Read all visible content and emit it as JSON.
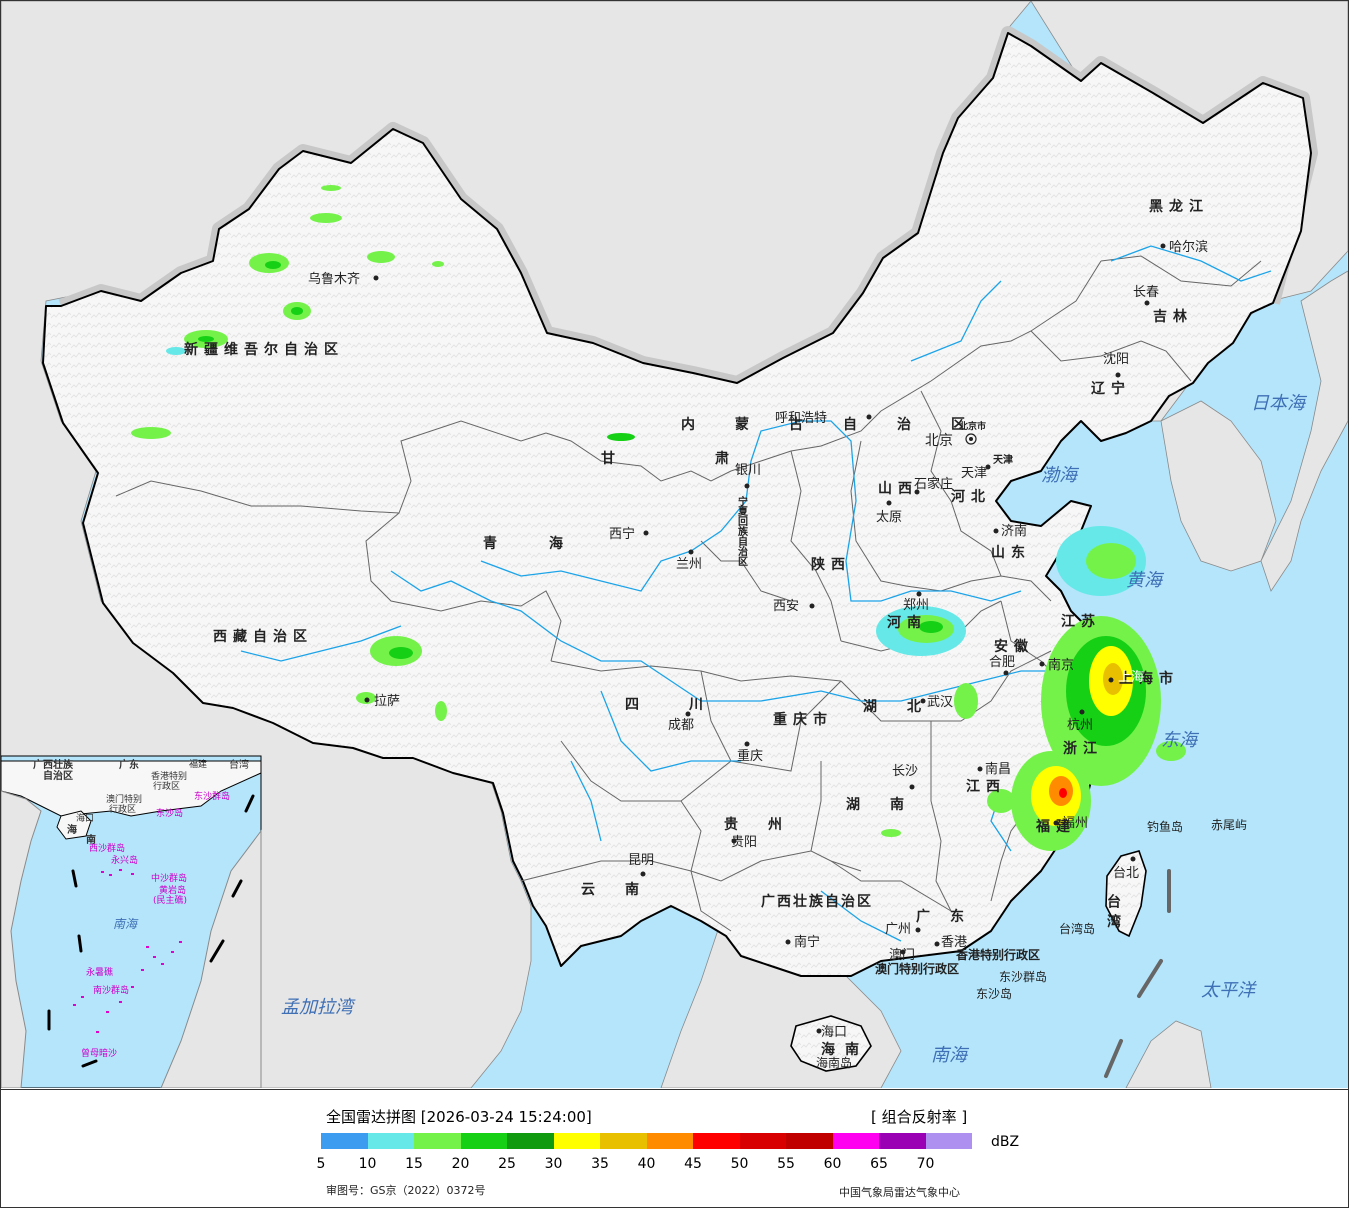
{
  "legend": {
    "title": "全国雷达拼图 [2026-03-24 15:24:00]",
    "product": "[ 组合反射率 ]",
    "unit": "dBZ",
    "colors": [
      "#3c9cf0",
      "#66e8e8",
      "#74f24a",
      "#16d016",
      "#0f9a0f",
      "#ffff00",
      "#e8c000",
      "#ff8c00",
      "#ff0000",
      "#d80000",
      "#c00000",
      "#ff00f0",
      "#9a00b4",
      "#ad90f0"
    ],
    "ticks": [
      "5",
      "10",
      "15",
      "20",
      "25",
      "30",
      "35",
      "40",
      "45",
      "50",
      "55",
      "60",
      "65",
      "70"
    ],
    "review_number": "审图号：GS京（2022）0372号",
    "source": "中国气象局雷达气象中心"
  },
  "map": {
    "colors": {
      "sea": "#b4e5fb",
      "foreign": "#e6e6e6",
      "land": "#f7f7f7",
      "halo": "#c8c8c8",
      "border": "#000000",
      "river": "#1ca4e8",
      "province": "#666666"
    },
    "provinces": {
      "xinjiang": "新疆维吾尔自治区",
      "xizang": "西藏自治区",
      "qinghai": "青海",
      "gansu": "甘肃",
      "neimenggu": "内蒙古自治区",
      "heilongjiang": "黑龙江",
      "jilin": "吉林",
      "liaoning": "辽宁",
      "hebei": "河北",
      "beijing": "北京市",
      "tianjin": "天津",
      "shanxi": "山西",
      "shandong": "山东",
      "henan": "河南",
      "shaanxi": "陕西",
      "ningxia": "宁夏回族自治区",
      "sichuan": "四川",
      "chongqing": "重庆市",
      "hubei": "湖北",
      "hunan": "湖南",
      "anhui": "安徽",
      "jiangsu": "江苏",
      "shanghai": "上海市",
      "zhejiang": "浙江",
      "jiangxi": "江西",
      "fujian": "福建",
      "guizhou": "贵州",
      "yunnan": "云南",
      "guangxi": "广西壮族自治区",
      "guangdong": "广东",
      "hainan": "海南",
      "taiwan": "台湾",
      "hongkong": "香港特别行政区",
      "macau": "澳门特别行政区"
    },
    "cities": {
      "urumqi": "乌鲁木齐",
      "lhasa": "拉萨",
      "xining": "西宁",
      "lanzhou": "兰州",
      "yinchuan": "银川",
      "hohhot": "呼和浩特",
      "harbin": "哈尔滨",
      "changchun": "长春",
      "shenyang": "沈阳",
      "beijing": "北京",
      "tianjin": "天津",
      "shijiazhuang": "石家庄",
      "taiyuan": "太原",
      "jinan": "济南",
      "zhengzhou": "郑州",
      "xian": "西安",
      "chengdu": "成都",
      "chongqing": "重庆",
      "wuhan": "武汉",
      "hefei": "合肥",
      "nanjing": "南京",
      "shanghai": "上海",
      "hangzhou": "杭州",
      "nanchang": "南昌",
      "changsha": "长沙",
      "fuzhou": "福州",
      "guiyang": "贵阳",
      "kunming": "昆明",
      "nanning": "南宁",
      "guangzhou": "广州",
      "hongkong": "香港",
      "macau": "澳门",
      "haikou": "海口",
      "taipei": "台北"
    },
    "seas": {
      "bohai": "渤海",
      "huanghai": "黄海",
      "donghai": "东海",
      "nanhai": "南海",
      "japan_sea": "日本海",
      "pacific": "太平洋",
      "bengal": "孟加拉湾"
    },
    "islands": {
      "diaoyu": "钓鱼岛",
      "chiwei": "赤尾屿",
      "taiwan_island": "台湾岛",
      "hainan_island": "海南岛",
      "dongsha_qundao": "东沙群岛",
      "dongsha_dao": "东沙岛"
    },
    "inset": {
      "guangdong": "广东",
      "guangxi_a": "广西壮族",
      "guangxi_b": "自治区",
      "fujian": "福建",
      "taiwan": "台湾",
      "hk_a": "香港特别",
      "hk_b": "行政区",
      "macau_a": "澳门特别",
      "macau_b": "行政区",
      "hainan_a": "海口",
      "hainan_b": "海",
      "hainan_c": "南",
      "xisha": "西沙群岛",
      "yongxing": "永兴岛",
      "zhongsha": "中沙群岛",
      "huangyan_a": "黄岩岛",
      "huangyan_b": "(民主礁)",
      "dongsha": "东沙群岛",
      "dongsha_dao": "东沙岛",
      "nansha": "南沙群岛",
      "yongshu": "永暑礁",
      "zengmu": "曾母暗沙",
      "sea": "南海"
    }
  }
}
